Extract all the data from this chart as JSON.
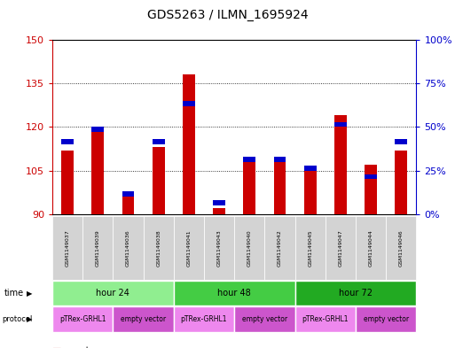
{
  "title": "GDS5263 / ILMN_1695924",
  "samples": [
    "GSM1149037",
    "GSM1149039",
    "GSM1149036",
    "GSM1149038",
    "GSM1149041",
    "GSM1149043",
    "GSM1149040",
    "GSM1149042",
    "GSM1149045",
    "GSM1149047",
    "GSM1149044",
    "GSM1149046"
  ],
  "counts": [
    112,
    119,
    97,
    113,
    138,
    92,
    109,
    109,
    105,
    124,
    107,
    112
  ],
  "percentiles": [
    40,
    47,
    10,
    40,
    62,
    5,
    30,
    30,
    25,
    50,
    20,
    40
  ],
  "y_min": 90,
  "y_max": 150,
  "y_ticks": [
    90,
    105,
    120,
    135,
    150
  ],
  "y2_ticks": [
    0,
    25,
    50,
    75,
    100
  ],
  "time_groups": [
    {
      "label": "hour 24",
      "start": 0,
      "end": 4,
      "color": "#90ee90"
    },
    {
      "label": "hour 48",
      "start": 4,
      "end": 8,
      "color": "#44cc44"
    },
    {
      "label": "hour 72",
      "start": 8,
      "end": 12,
      "color": "#22aa22"
    }
  ],
  "protocol_groups": [
    {
      "label": "pTRex-GRHL1",
      "start": 0,
      "end": 2,
      "color": "#ee88ee"
    },
    {
      "label": "empty vector",
      "start": 2,
      "end": 4,
      "color": "#cc55cc"
    },
    {
      "label": "pTRex-GRHL1",
      "start": 4,
      "end": 6,
      "color": "#ee88ee"
    },
    {
      "label": "empty vector",
      "start": 6,
      "end": 8,
      "color": "#cc55cc"
    },
    {
      "label": "pTRex-GRHL1",
      "start": 8,
      "end": 10,
      "color": "#ee88ee"
    },
    {
      "label": "empty vector",
      "start": 10,
      "end": 12,
      "color": "#cc55cc"
    }
  ],
  "bar_width": 0.4,
  "count_color": "#cc0000",
  "percentile_color": "#0000cc",
  "bg_color": "#ffffff",
  "axis_left_color": "#cc0000",
  "axis_right_color": "#0000cc"
}
